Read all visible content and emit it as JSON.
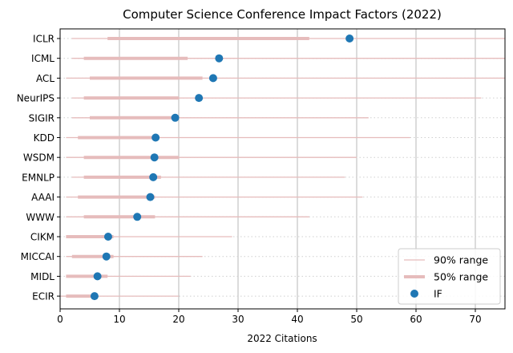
{
  "chart_data": {
    "type": "dot-range",
    "title": "Computer Science Conference Impact Factors (2022)",
    "xlabel": "2022 Citations",
    "ylabel": "",
    "xlim": [
      0,
      75
    ],
    "xticks": [
      0,
      10,
      20,
      30,
      40,
      50,
      60,
      70
    ],
    "grid": "vertical major gridlines; dotted horizontal guide per category",
    "legend_position": "bottom-right",
    "categories": [
      "ICLR",
      "ICML",
      "ACL",
      "NeurIPS",
      "SIGIR",
      "KDD",
      "WSDM",
      "EMNLP",
      "AAAI",
      "WWW",
      "CIKM",
      "MICCAI",
      "MIDL",
      "ECIR"
    ],
    "series": [
      {
        "name": "90% range",
        "kind": "thin-range",
        "color": "#e6bcbc",
        "ranges": [
          [
            2,
            75
          ],
          [
            2,
            75
          ],
          [
            1,
            75
          ],
          [
            2,
            71
          ],
          [
            2,
            52
          ],
          [
            1,
            59
          ],
          [
            1,
            50
          ],
          [
            2,
            48
          ],
          [
            1,
            51
          ],
          [
            1,
            42
          ],
          [
            1,
            29
          ],
          [
            1,
            24
          ],
          [
            1,
            22
          ],
          [
            0,
            20
          ]
        ]
      },
      {
        "name": "50% range",
        "kind": "thick-range",
        "color": "#e6bcbc",
        "ranges": [
          [
            8,
            42
          ],
          [
            4,
            21.5
          ],
          [
            5,
            24
          ],
          [
            4,
            20
          ],
          [
            5,
            20
          ],
          [
            3,
            16
          ],
          [
            4,
            20
          ],
          [
            4,
            17
          ],
          [
            3,
            16
          ],
          [
            4,
            16
          ],
          [
            1,
            9
          ],
          [
            2,
            9
          ],
          [
            1,
            8
          ],
          [
            1,
            6
          ]
        ]
      },
      {
        "name": "IF",
        "kind": "point",
        "color": "#1f77b4",
        "values": [
          48.8,
          26.8,
          25.8,
          23.4,
          19.4,
          16.1,
          15.9,
          15.7,
          15.2,
          13.0,
          8.1,
          7.8,
          6.3,
          5.8
        ]
      }
    ]
  }
}
